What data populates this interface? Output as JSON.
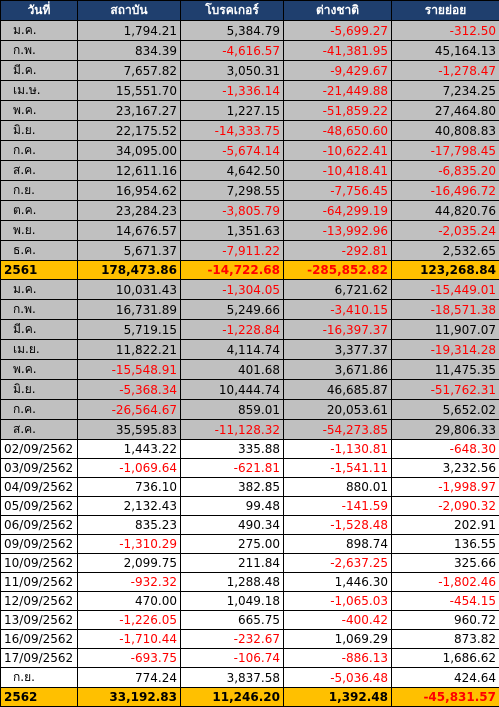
{
  "table": {
    "header": [
      "วันที่",
      "สถาบัน",
      "โบรคเกอร์",
      "ต่างชาติ",
      "รายย่อย"
    ],
    "header_fill": "#1f3f6e",
    "negative_color": "#ff0000",
    "rows": [
      {
        "fill": "#c0c0c0",
        "cells": [
          "ม.ค.",
          "1,794.21",
          "5,384.79",
          "-5,699.27",
          "-312.50"
        ]
      },
      {
        "fill": "#c0c0c0",
        "cells": [
          "ก.พ.",
          "834.39",
          "-4,616.57",
          "-41,381.95",
          "45,164.13"
        ]
      },
      {
        "fill": "#c0c0c0",
        "cells": [
          "มี.ค.",
          "7,657.82",
          "3,050.31",
          "-9,429.67",
          "-1,278.47"
        ]
      },
      {
        "fill": "#c0c0c0",
        "cells": [
          "เม.ษ.",
          "15,551.70",
          "-1,336.14",
          "-21,449.88",
          "7,234.25"
        ]
      },
      {
        "fill": "#c0c0c0",
        "cells": [
          "พ.ค.",
          "23,167.27",
          "1,227.15",
          "-51,859.22",
          "27,464.80"
        ]
      },
      {
        "fill": "#c0c0c0",
        "cells": [
          "มิ.ย.",
          "22,175.52",
          "-14,333.75",
          "-48,650.60",
          "40,808.83"
        ]
      },
      {
        "fill": "#c0c0c0",
        "cells": [
          "ก.ค.",
          "34,095.00",
          "-5,674.14",
          "-10,622.41",
          "-17,798.45"
        ]
      },
      {
        "fill": "#c0c0c0",
        "cells": [
          "ส.ค.",
          "12,611.16",
          "4,642.50",
          "-10,418.41",
          "-6,835.20"
        ]
      },
      {
        "fill": "#c0c0c0",
        "cells": [
          "ก.ย.",
          "16,954.62",
          "7,298.55",
          "-7,756.45",
          "-16,496.72"
        ]
      },
      {
        "fill": "#c0c0c0",
        "cells": [
          "ต.ค.",
          "23,284.23",
          "-3,805.79",
          "-64,299.19",
          "44,820.76"
        ]
      },
      {
        "fill": "#c0c0c0",
        "cells": [
          "พ.ย.",
          "14,676.57",
          "1,351.63",
          "-13,992.96",
          "-2,035.24"
        ]
      },
      {
        "fill": "#c0c0c0",
        "cells": [
          "ธ.ค.",
          "5,671.37",
          "-7,911.22",
          "-292.81",
          "2,532.65"
        ]
      },
      {
        "fill": "#ffc000",
        "bold": true,
        "cells": [
          "2561",
          "178,473.86",
          "-14,722.68",
          "-285,852.82",
          "123,268.84"
        ]
      },
      {
        "fill": "#c0c0c0",
        "cells": [
          "ม.ค.",
          "10,031.43",
          "-1,304.05",
          "6,721.62",
          "-15,449.01"
        ]
      },
      {
        "fill": "#c0c0c0",
        "cells": [
          "ก.พ.",
          "16,731.89",
          "5,249.66",
          "-3,410.15",
          "-18,571.38"
        ]
      },
      {
        "fill": "#c0c0c0",
        "cells": [
          "มี.ค.",
          "5,719.15",
          "-1,228.84",
          "-16,397.37",
          "11,907.07"
        ]
      },
      {
        "fill": "#c0c0c0",
        "cells": [
          "เม.ย.",
          "11,822.21",
          "4,114.74",
          "3,377.37",
          "-19,314.28"
        ]
      },
      {
        "fill": "#c0c0c0",
        "cells": [
          "พ.ค.",
          "-15,548.91",
          "401.68",
          "3,671.86",
          "11,475.35"
        ]
      },
      {
        "fill": "#c0c0c0",
        "cells": [
          "มิ.ย.",
          "-5,368.34",
          "10,444.74",
          "46,685.87",
          "-51,762.31"
        ]
      },
      {
        "fill": "#c0c0c0",
        "cells": [
          "ก.ค.",
          "-26,564.67",
          "859.01",
          "20,053.61",
          "5,652.02"
        ]
      },
      {
        "fill": "#c0c0c0",
        "cells": [
          "ส.ค.",
          "35,595.83",
          "-11,128.32",
          "-54,273.85",
          "29,806.33"
        ]
      },
      {
        "fill": "#ffffff",
        "cells": [
          "02/09/2562",
          "1,443.22",
          "335.88",
          "-1,130.81",
          "-648.30"
        ]
      },
      {
        "fill": "#ffffff",
        "cells": [
          "03/09/2562",
          "-1,069.64",
          "-621.81",
          "-1,541.11",
          "3,232.56"
        ]
      },
      {
        "fill": "#ffffff",
        "cells": [
          "04/09/2562",
          "736.10",
          "382.85",
          "880.01",
          "-1,998.97"
        ]
      },
      {
        "fill": "#ffffff",
        "cells": [
          "05/09/2562",
          "2,132.43",
          "99.48",
          "-141.59",
          "-2,090.32"
        ]
      },
      {
        "fill": "#ffffff",
        "cells": [
          "06/09/2562",
          "835.23",
          "490.34",
          "-1,528.48",
          "202.91"
        ]
      },
      {
        "fill": "#ffffff",
        "cells": [
          "09/09/2562",
          "-1,310.29",
          "275.00",
          "898.74",
          "136.55"
        ]
      },
      {
        "fill": "#ffffff",
        "cells": [
          "10/09/2562",
          "2,099.75",
          "211.84",
          "-2,637.25",
          "325.66"
        ]
      },
      {
        "fill": "#ffffff",
        "cells": [
          "11/09/2562",
          "-932.32",
          "1,288.48",
          "1,446.30",
          "-1,802.46"
        ]
      },
      {
        "fill": "#ffffff",
        "cells": [
          "12/09/2562",
          "470.00",
          "1,049.18",
          "-1,065.03",
          "-454.15"
        ]
      },
      {
        "fill": "#ffffff",
        "cells": [
          "13/09/2562",
          "-1,226.05",
          "665.75",
          "-400.42",
          "960.72"
        ]
      },
      {
        "fill": "#ffffff",
        "cells": [
          "16/09/2562",
          "-1,710.44",
          "-232.67",
          "1,069.29",
          "873.82"
        ]
      },
      {
        "fill": "#ffffff",
        "cells": [
          "17/09/2562",
          "-693.75",
          "-106.74",
          "-886.13",
          "1,686.62"
        ]
      },
      {
        "fill": "#ffffff",
        "cells": [
          "ก.ย.",
          "774.24",
          "3,837.58",
          "-5,036.48",
          "424.64"
        ]
      },
      {
        "fill": "#ffc000",
        "bold": true,
        "cells": [
          "2562",
          "33,192.83",
          "11,246.20",
          "1,392.48",
          "-45,831.57"
        ]
      }
    ]
  }
}
